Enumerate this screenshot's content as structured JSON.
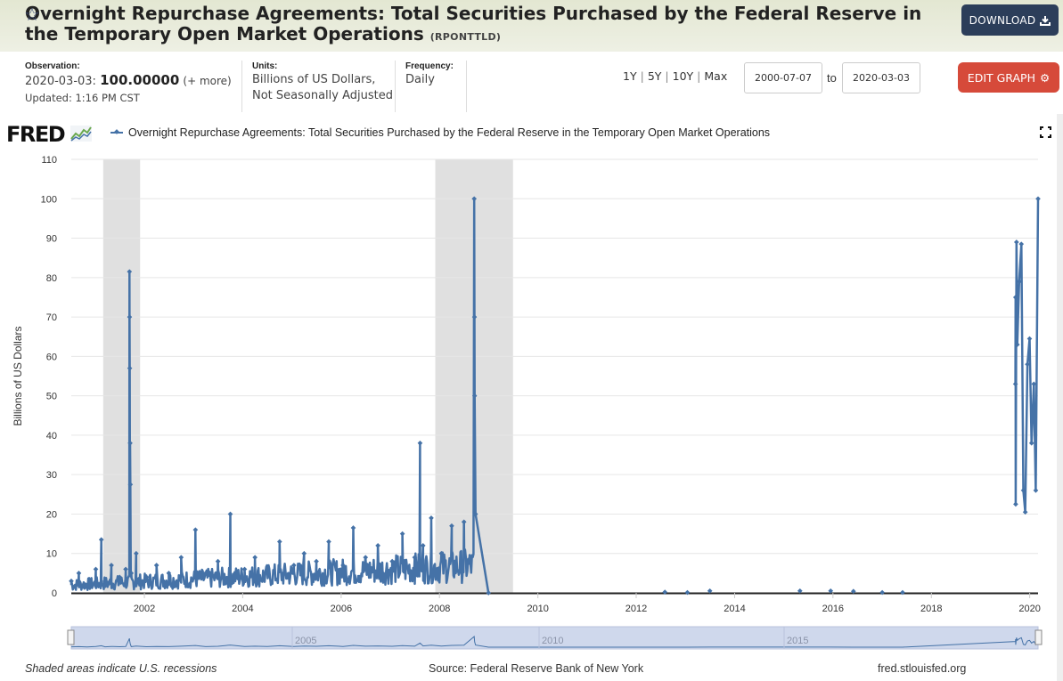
{
  "header": {
    "title": "Overnight Repurchase Agreements: Total Securities Purchased by the Federal Reserve in the Temporary Open Market Operations",
    "series_id": "(RPONTTLD)",
    "download_label": "DOWNLOAD"
  },
  "meta": {
    "observation_label": "Observation:",
    "observation_date": "2020-03-03:",
    "observation_value": "100.00000",
    "observation_more": "(+ more)",
    "updated": "Updated: 1:16 PM CST",
    "units_label": "Units:",
    "units_line1": "Billions of US Dollars,",
    "units_line2": "Not Seasonally Adjusted",
    "frequency_label": "Frequency:",
    "frequency_value": "Daily"
  },
  "controls": {
    "range_1y": "1Y",
    "range_5y": "5Y",
    "range_10y": "10Y",
    "range_max": "Max",
    "start_date": "2000-07-07",
    "to_label": "to",
    "end_date": "2020-03-03",
    "edit_label": "EDIT GRAPH"
  },
  "logo_text": "FRED",
  "footer": {
    "recession_note": "Shaded areas indicate U.S. recessions",
    "source": "Source: Federal Reserve Bank of New York",
    "site": "fred.stlouisfed.org"
  },
  "navigator_labels": [
    "2005",
    "2010",
    "2015"
  ],
  "colors": {
    "series": "#4572a7",
    "recession": "#e0e0e0",
    "edit_button": "#d64a3a",
    "download_button": "#2c3e5a"
  },
  "chart_data": {
    "type": "line",
    "title": "",
    "legend": "Overnight Repurchase Agreements: Total Securities Purchased by the Federal Reserve in the Temporary Open Market Operations",
    "ylabel": "Billions of US Dollars",
    "ylim": [
      0,
      110
    ],
    "yticks": [
      0,
      10,
      20,
      30,
      40,
      50,
      60,
      70,
      80,
      90,
      100,
      110
    ],
    "xlim": [
      "2000-07-07",
      "2020-03-03"
    ],
    "xticks": [
      "2002",
      "2004",
      "2006",
      "2008",
      "2010",
      "2012",
      "2014",
      "2016",
      "2018",
      "2020"
    ],
    "grid": true,
    "recessions": [
      [
        "2001-03-01",
        "2001-11-30"
      ],
      [
        "2007-12-01",
        "2009-06-30"
      ]
    ],
    "series": [
      {
        "values": [
          [
            "2000-07-07",
            3
          ],
          [
            "2000-09-01",
            5
          ],
          [
            "2000-11-01",
            2
          ],
          [
            "2001-01-05",
            6
          ],
          [
            "2001-02-15",
            13.5
          ],
          [
            "2001-03-15",
            3
          ],
          [
            "2001-05-01",
            7
          ],
          [
            "2001-07-01",
            4
          ],
          [
            "2001-08-15",
            6
          ],
          [
            "2001-09-12",
            81.5
          ],
          [
            "2001-09-13",
            70
          ],
          [
            "2001-09-14",
            57
          ],
          [
            "2001-09-17",
            38
          ],
          [
            "2001-09-19",
            27.5
          ],
          [
            "2001-09-25",
            5
          ],
          [
            "2001-11-01",
            10
          ],
          [
            "2002-01-15",
            4
          ],
          [
            "2002-04-01",
            7
          ],
          [
            "2002-07-01",
            5
          ],
          [
            "2002-10-01",
            9
          ],
          [
            "2003-01-15",
            16
          ],
          [
            "2003-04-01",
            5
          ],
          [
            "2003-07-01",
            8
          ],
          [
            "2003-10-01",
            20
          ],
          [
            "2004-01-15",
            6
          ],
          [
            "2004-04-01",
            9
          ],
          [
            "2004-07-01",
            6
          ],
          [
            "2004-10-01",
            13
          ],
          [
            "2005-01-15",
            7
          ],
          [
            "2005-04-01",
            10
          ],
          [
            "2005-07-01",
            8
          ],
          [
            "2005-10-01",
            13
          ],
          [
            "2006-01-15",
            7
          ],
          [
            "2006-04-01",
            16.5
          ],
          [
            "2006-07-01",
            9
          ],
          [
            "2006-10-01",
            12
          ],
          [
            "2007-01-15",
            8
          ],
          [
            "2007-04-01",
            15
          ],
          [
            "2007-07-01",
            9
          ],
          [
            "2007-08-10",
            38
          ],
          [
            "2007-09-01",
            12
          ],
          [
            "2007-11-01",
            19
          ],
          [
            "2008-01-15",
            10
          ],
          [
            "2008-04-01",
            17
          ],
          [
            "2008-07-01",
            18
          ],
          [
            "2008-09-15",
            100
          ],
          [
            "2008-09-17",
            70
          ],
          [
            "2008-09-18",
            50
          ],
          [
            "2008-09-25",
            20
          ],
          [
            "2008-12-30",
            0
          ],
          [
            "2012-08-01",
            0.2
          ],
          [
            "2013-01-15",
            0.1
          ],
          [
            "2013-07-01",
            0.5
          ],
          [
            "2015-05-01",
            0.5
          ],
          [
            "2015-12-15",
            0.5
          ],
          [
            "2016-06-01",
            0.4
          ],
          [
            "2017-01-01",
            0.1
          ],
          [
            "2017-06-01",
            0.1
          ],
          [
            "2019-09-17",
            53
          ],
          [
            "2019-09-18",
            75
          ],
          [
            "2019-09-19",
            22.5
          ],
          [
            "2019-09-25",
            89
          ],
          [
            "2019-10-01",
            63
          ],
          [
            "2019-10-15",
            79
          ],
          [
            "2019-10-31",
            88.5
          ],
          [
            "2019-11-15",
            26
          ],
          [
            "2019-11-29",
            20.5
          ],
          [
            "2019-12-15",
            58
          ],
          [
            "2019-12-31",
            64.5
          ],
          [
            "2020-01-15",
            38
          ],
          [
            "2020-02-01",
            53
          ],
          [
            "2020-02-15",
            26
          ],
          [
            "2020-03-03",
            100
          ]
        ]
      }
    ]
  }
}
